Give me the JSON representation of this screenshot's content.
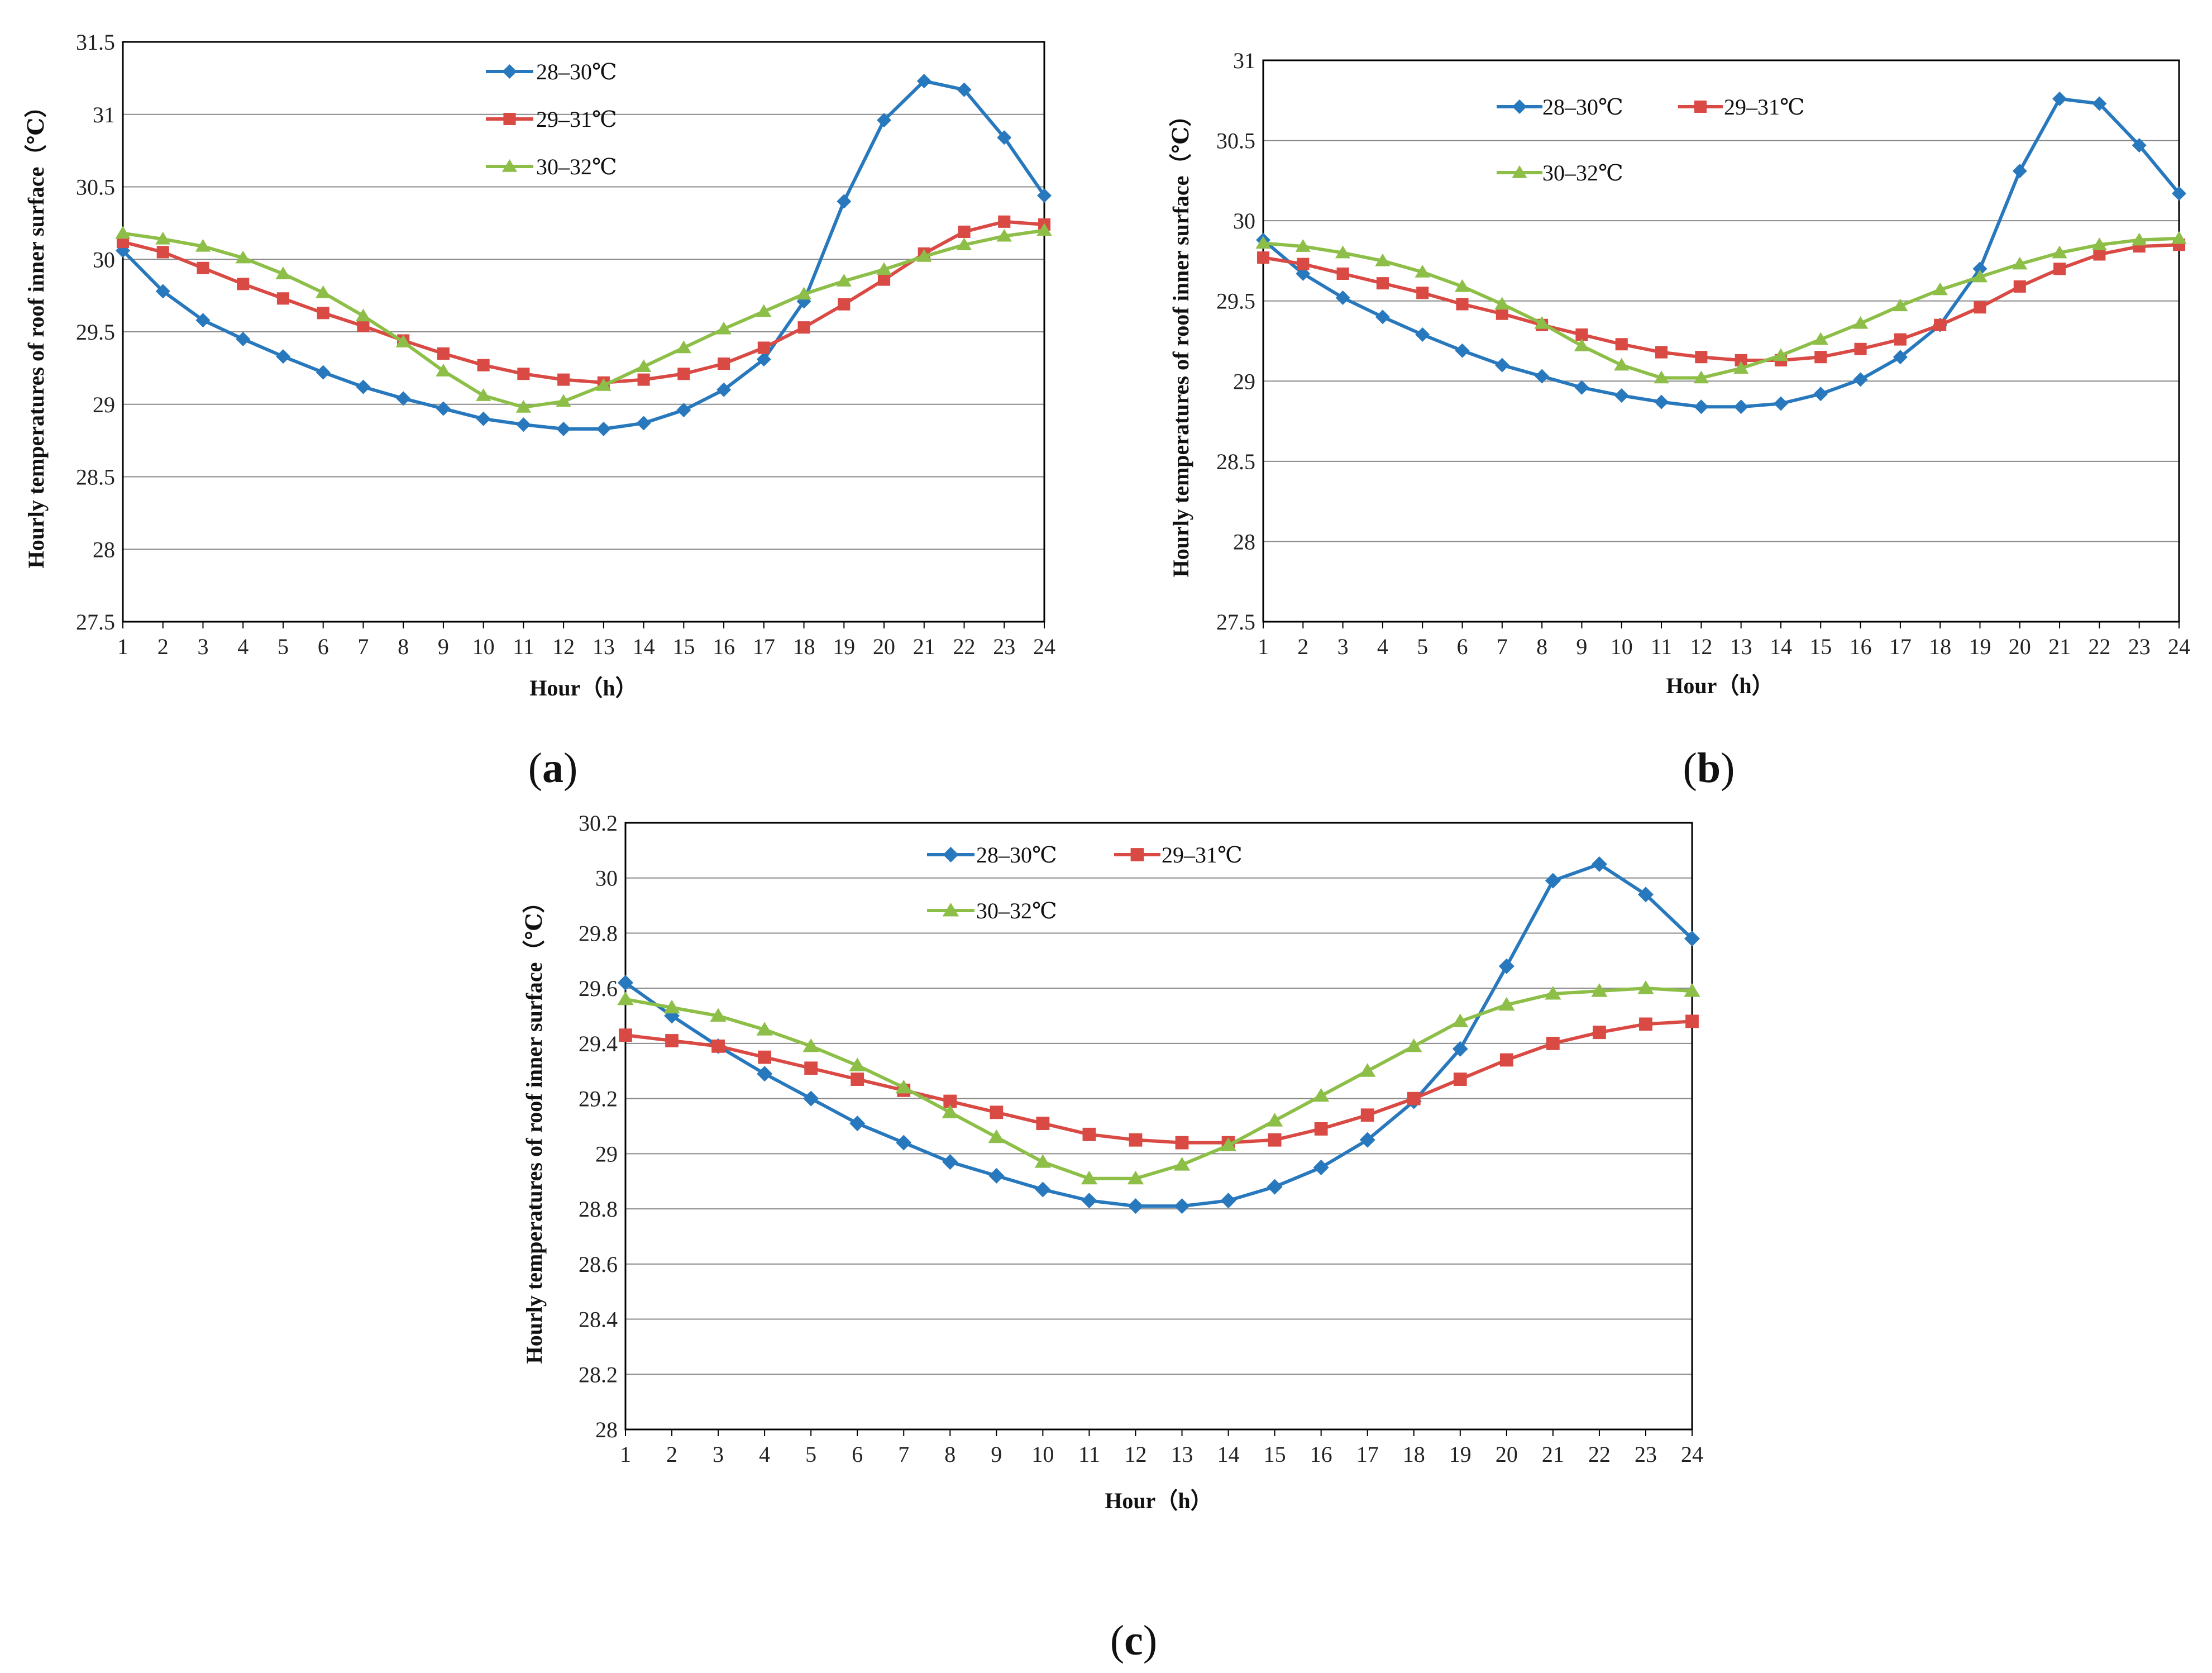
{
  "figure": {
    "panels": [
      "(a)",
      "(b)",
      "(c)"
    ]
  },
  "colors": {
    "series_28_30": "#2878BD",
    "series_29_31": "#DA4A45",
    "series_30_32": "#8DBF48",
    "gridline": "#8a8a8a",
    "frame": "#000000"
  },
  "chart_data": [
    {
      "type": "line",
      "panel": "a",
      "caption_letter": "a",
      "title": "",
      "xlabel": "Hour（h）",
      "ylabel": "Hourly temperatures of roof inner surface（℃）",
      "x": [
        1,
        2,
        3,
        4,
        5,
        6,
        7,
        8,
        9,
        10,
        11,
        12,
        13,
        14,
        15,
        16,
        17,
        18,
        19,
        20,
        21,
        22,
        23,
        24
      ],
      "xtick_labels": [
        "1",
        "2",
        "3",
        "4",
        "5",
        "6",
        "7",
        "8",
        "9",
        "10",
        "11",
        "12",
        "13",
        "14",
        "15",
        "16",
        "17",
        "18",
        "19",
        "20",
        "21",
        "22",
        "23",
        "24"
      ],
      "ylim": [
        27.5,
        31.5
      ],
      "yticks": [
        27.5,
        28,
        28.5,
        29,
        29.5,
        30,
        30.5,
        31,
        31.5
      ],
      "ytick_labels": [
        "27.5",
        "28",
        "28.5",
        "29",
        "29.5",
        "30",
        "30.5",
        "31",
        "31.5"
      ],
      "grid": true,
      "legend_layout": "stacked",
      "series": [
        {
          "name": "28–30℃",
          "marker": "diamond",
          "values": [
            30.06,
            29.78,
            29.58,
            29.45,
            29.33,
            29.22,
            29.12,
            29.04,
            28.97,
            28.9,
            28.86,
            28.83,
            28.83,
            28.87,
            28.96,
            29.1,
            29.31,
            29.71,
            30.4,
            30.96,
            31.23,
            31.17,
            30.84,
            30.44
          ]
        },
        {
          "name": "29–31℃",
          "marker": "square",
          "values": [
            30.12,
            30.05,
            29.94,
            29.83,
            29.73,
            29.63,
            29.54,
            29.44,
            29.35,
            29.27,
            29.21,
            29.17,
            29.15,
            29.17,
            29.21,
            29.28,
            29.39,
            29.53,
            29.69,
            29.86,
            30.04,
            30.19,
            30.26,
            30.24
          ]
        },
        {
          "name": "30–32℃",
          "marker": "triangle",
          "values": [
            30.18,
            30.14,
            30.09,
            30.01,
            29.9,
            29.77,
            29.61,
            29.43,
            29.23,
            29.06,
            28.98,
            29.02,
            29.13,
            29.26,
            29.39,
            29.52,
            29.64,
            29.76,
            29.85,
            29.93,
            30.02,
            30.1,
            30.16,
            30.2
          ]
        }
      ]
    },
    {
      "type": "line",
      "panel": "b",
      "caption_letter": "b",
      "title": "",
      "xlabel": "Hour（h）",
      "ylabel": "Hourly temperatures of roof inner surface（℃）",
      "x": [
        1,
        2,
        3,
        4,
        5,
        6,
        7,
        8,
        9,
        10,
        11,
        12,
        13,
        14,
        15,
        16,
        17,
        18,
        19,
        20,
        21,
        22,
        23,
        24
      ],
      "xtick_labels": [
        "1",
        "2",
        "3",
        "4",
        "5",
        "6",
        "7",
        "8",
        "9",
        "10",
        "11",
        "12",
        "13",
        "14",
        "15",
        "16",
        "17",
        "18",
        "19",
        "20",
        "21",
        "22",
        "23",
        "24"
      ],
      "ylim": [
        27.5,
        31
      ],
      "yticks": [
        27.5,
        28,
        28.5,
        29,
        29.5,
        30,
        30.5,
        31
      ],
      "ytick_labels": [
        "27.5",
        "28",
        "28.5",
        "29",
        "29.5",
        "30",
        "30.5",
        "31"
      ],
      "grid": true,
      "legend_layout": "two-rows",
      "series": [
        {
          "name": "28–30℃",
          "marker": "diamond",
          "values": [
            29.88,
            29.67,
            29.52,
            29.4,
            29.29,
            29.19,
            29.1,
            29.03,
            28.96,
            28.91,
            28.87,
            28.84,
            28.84,
            28.86,
            28.92,
            29.01,
            29.15,
            29.35,
            29.7,
            30.31,
            30.76,
            30.73,
            30.47,
            30.17
          ]
        },
        {
          "name": "29–31℃",
          "marker": "square",
          "values": [
            29.77,
            29.73,
            29.67,
            29.61,
            29.55,
            29.48,
            29.42,
            29.35,
            29.29,
            29.23,
            29.18,
            29.15,
            29.13,
            29.13,
            29.15,
            29.2,
            29.26,
            29.35,
            29.46,
            29.59,
            29.7,
            29.79,
            29.84,
            29.85
          ]
        },
        {
          "name": "30–32℃",
          "marker": "triangle",
          "values": [
            29.86,
            29.84,
            29.8,
            29.75,
            29.68,
            29.59,
            29.48,
            29.36,
            29.22,
            29.1,
            29.02,
            29.02,
            29.08,
            29.16,
            29.26,
            29.36,
            29.47,
            29.57,
            29.65,
            29.73,
            29.8,
            29.85,
            29.88,
            29.89
          ]
        }
      ]
    },
    {
      "type": "line",
      "panel": "c",
      "caption_letter": "c",
      "title": "",
      "xlabel": "Hour（h）",
      "ylabel": "Hourly temperatures of roof inner surface（℃）",
      "x": [
        1,
        2,
        3,
        4,
        5,
        6,
        7,
        8,
        9,
        10,
        11,
        12,
        13,
        14,
        15,
        16,
        17,
        18,
        19,
        20,
        21,
        22,
        23,
        24
      ],
      "xtick_labels": [
        "1",
        "2",
        "3",
        "4",
        "5",
        "6",
        "7",
        "8",
        "9",
        "10",
        "11",
        "12",
        "13",
        "14",
        "15",
        "16",
        "17",
        "18",
        "19",
        "20",
        "21",
        "22",
        "23",
        "24"
      ],
      "ylim": [
        28,
        30.2
      ],
      "yticks": [
        28,
        28.2,
        28.4,
        28.6,
        28.8,
        29,
        29.2,
        29.4,
        29.6,
        29.8,
        30,
        30.2
      ],
      "ytick_labels": [
        "28",
        "28.2",
        "28.4",
        "28.6",
        "28.8",
        "29",
        "29.2",
        "29.4",
        "29.6",
        "29.8",
        "30",
        "30.2"
      ],
      "grid": true,
      "legend_layout": "two-rows",
      "series": [
        {
          "name": "28–30℃",
          "marker": "diamond",
          "values": [
            29.62,
            29.5,
            29.39,
            29.29,
            29.2,
            29.11,
            29.04,
            28.97,
            28.92,
            28.87,
            28.83,
            28.81,
            28.81,
            28.83,
            28.88,
            28.95,
            29.05,
            29.19,
            29.38,
            29.68,
            29.99,
            30.05,
            29.94,
            29.78
          ]
        },
        {
          "name": "29–31℃",
          "marker": "square",
          "values": [
            29.43,
            29.41,
            29.39,
            29.35,
            29.31,
            29.27,
            29.23,
            29.19,
            29.15,
            29.11,
            29.07,
            29.05,
            29.04,
            29.04,
            29.05,
            29.09,
            29.14,
            29.2,
            29.27,
            29.34,
            29.4,
            29.44,
            29.47,
            29.48
          ]
        },
        {
          "name": "30–32℃",
          "marker": "triangle",
          "values": [
            29.56,
            29.53,
            29.5,
            29.45,
            29.39,
            29.32,
            29.24,
            29.15,
            29.06,
            28.97,
            28.91,
            28.91,
            28.96,
            29.03,
            29.12,
            29.21,
            29.3,
            29.39,
            29.48,
            29.54,
            29.58,
            29.59,
            29.6,
            29.59
          ]
        }
      ]
    }
  ]
}
